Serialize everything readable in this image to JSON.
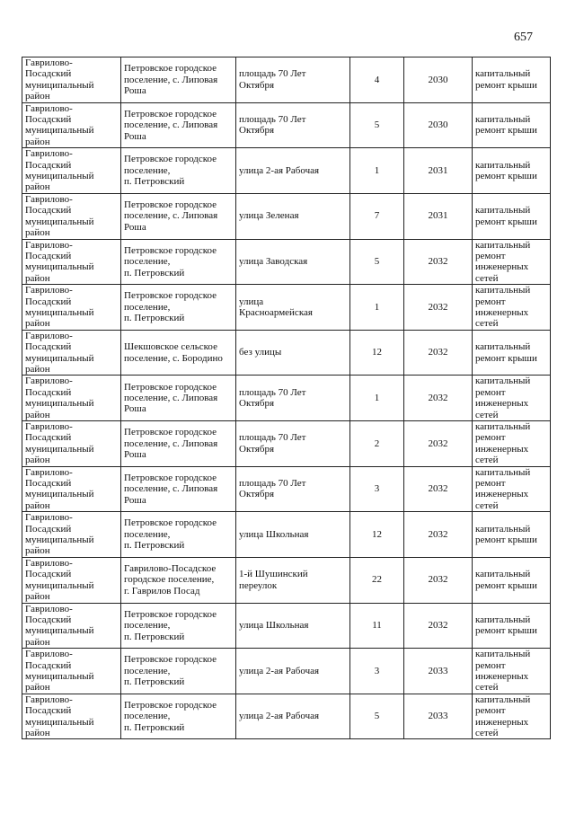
{
  "page_number": "657",
  "rows": [
    [
      "Гаврилово-\nПосадский\nмуниципальный\nрайон",
      "Петровское городское\nпоселение, с. Липовая\nРоша",
      "площадь 70 Лет\nОктября",
      "4",
      "2030",
      "капитальный\nремонт крыши"
    ],
    [
      "Гаврилово-\nПосадский\nмуниципальный\nрайон",
      "Петровское городское\nпоселение, с. Липовая\nРоша",
      "площадь 70 Лет\nОктября",
      "5",
      "2030",
      "капитальный\nремонт крыши"
    ],
    [
      "Гаврилово-\nПосадский\nмуниципальный\nрайон",
      "Петровское городское\nпоселение,\nп. Петровский",
      "улица  2-ая Рабочая",
      "1",
      "2031",
      "капитальный\nремонт крыши"
    ],
    [
      "Гаврилово-\nПосадский\nмуниципальный\nрайон",
      "Петровское городское\nпоселение, с. Липовая\nРоша",
      "улица  Зеленая",
      "7",
      "2031",
      "капитальный\nремонт крыши"
    ],
    [
      "Гаврилово-\nПосадский\nмуниципальный\nрайон",
      "Петровское городское\nпоселение,\nп. Петровский",
      "улица  Заводская",
      "5",
      "2032",
      "капитальный\nремонт\nинженерных\nсетей"
    ],
    [
      "Гаврилово-\nПосадский\nмуниципальный\nрайон",
      "Петровское городское\nпоселение,\nп. Петровский",
      "улица\nКрасноармейская",
      "1",
      "2032",
      "капитальный\nремонт\nинженерных\nсетей"
    ],
    [
      "Гаврилово-\nПосадский\nмуниципальный\nрайон",
      "Шекшовское сельское\nпоселение, с. Бородино",
      "без улицы",
      "12",
      "2032",
      "капитальный\nремонт крыши"
    ],
    [
      "Гаврилово-\nПосадский\nмуниципальный\nрайон",
      "Петровское городское\nпоселение, с. Липовая\nРоша",
      "площадь 70 Лет\nОктября",
      "1",
      "2032",
      "капитальный\nремонт\nинженерных\nсетей"
    ],
    [
      "Гаврилово-\nПосадский\nмуниципальный\nрайон",
      "Петровское городское\nпоселение, с. Липовая\nРоша",
      "площадь 70 Лет\nОктября",
      "2",
      "2032",
      "капитальный\nремонт\nинженерных\nсетей"
    ],
    [
      "Гаврилово-\nПосадский\nмуниципальный\nрайон",
      "Петровское городское\nпоселение, с. Липовая\nРоша",
      "площадь 70 Лет\nОктября",
      "3",
      "2032",
      "капитальный\nремонт\nинженерных\nсетей"
    ],
    [
      "Гаврилово-\nПосадский\nмуниципальный\nрайон",
      "Петровское городское\nпоселение,\nп. Петровский",
      "улица  Школьная",
      "12",
      "2032",
      "капитальный\nремонт крыши"
    ],
    [
      "Гаврилово-\nПосадский\nмуниципальный\nрайон",
      "Гаврилово-Посадское\nгородское поселение,\nг. Гаврилов Посад",
      "1-й Шушинский\nпереулок",
      "22",
      "2032",
      "капитальный\nремонт крыши"
    ],
    [
      "Гаврилово-\nПосадский\nмуниципальный\nрайон",
      "Петровское городское\nпоселение,\nп. Петровский",
      "улица  Школьная",
      "11",
      "2032",
      "капитальный\nремонт крыши"
    ],
    [
      "Гаврилово-\nПосадский\nмуниципальный\nрайон",
      "Петровское городское\nпоселение,\nп. Петровский",
      "улица  2-ая Рабочая",
      "3",
      "2033",
      "капитальный\nремонт\nинженерных\nсетей"
    ],
    [
      "Гаврилово-\nПосадский\nмуниципальный\nрайон",
      "Петровское городское\nпоселение,\nп. Петровский",
      "улица  2-ая Рабочая",
      "5",
      "2033",
      "капитальный\nремонт\nинженерных\nсетей"
    ]
  ]
}
